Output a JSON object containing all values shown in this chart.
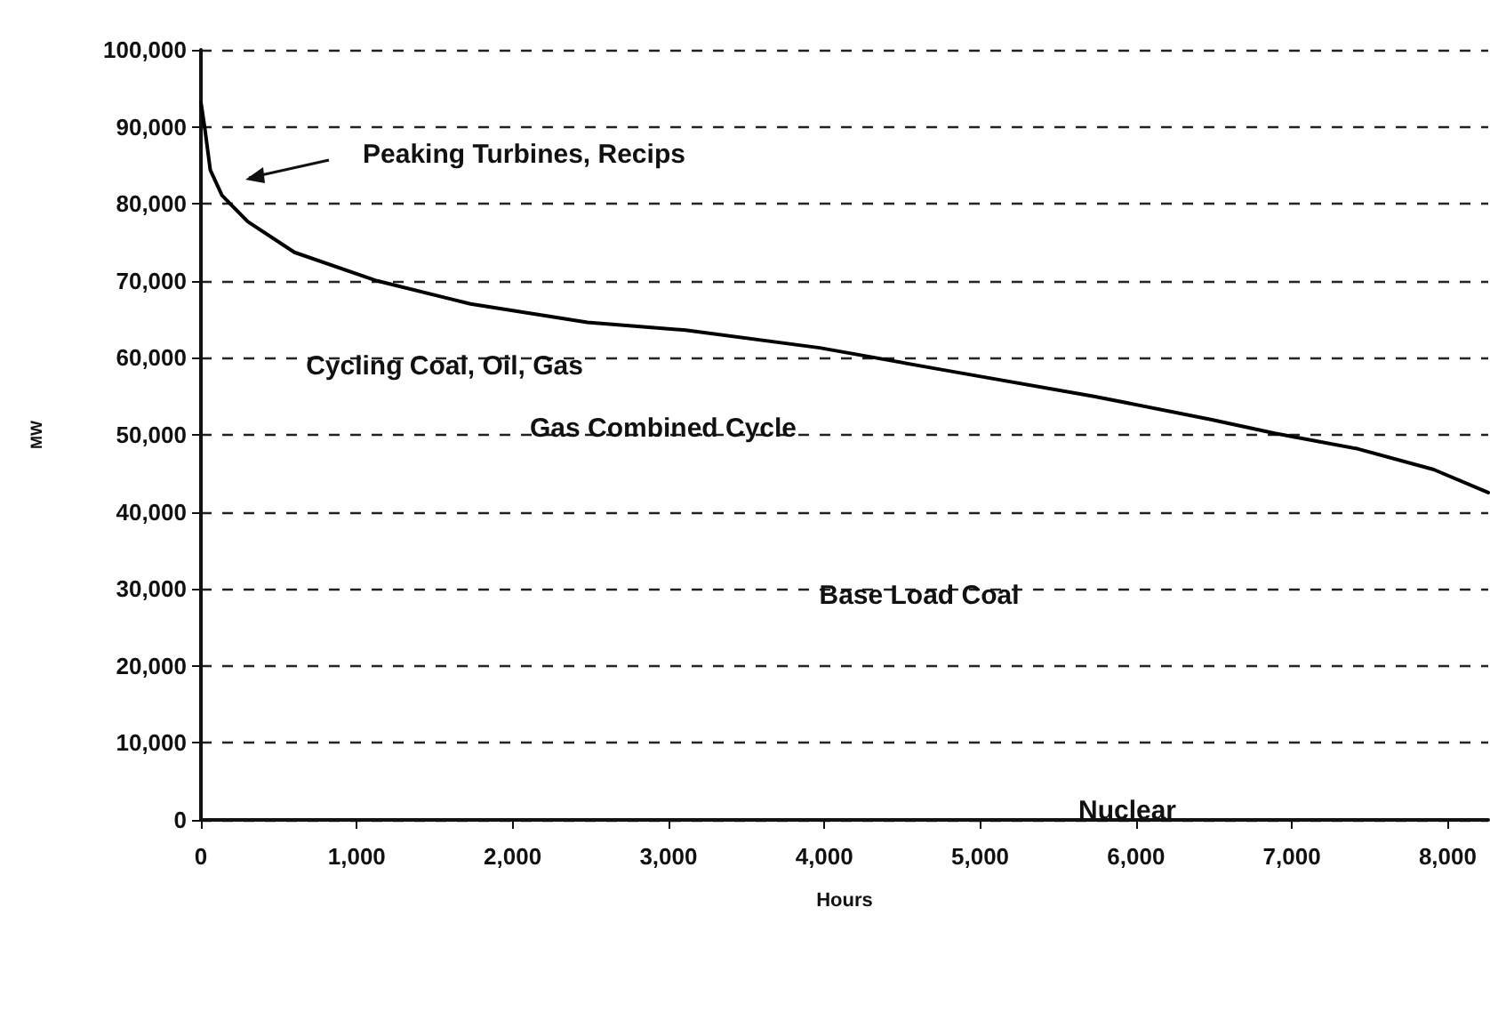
{
  "chart_data": {
    "type": "line",
    "xlabel": "Hours",
    "ylabel": "MW",
    "x": [
      0,
      25,
      60,
      135,
      300,
      600,
      1130,
      1730,
      2480,
      3110,
      3970,
      4800,
      5730,
      6480,
      6890,
      7420,
      7910,
      8260
    ],
    "values": [
      93200,
      89800,
      84400,
      81100,
      77700,
      73700,
      70000,
      67000,
      64600,
      63600,
      61300,
      58300,
      55000,
      52000,
      50200,
      48200,
      45500,
      42500
    ],
    "color": "#000000",
    "xlim": [
      0,
      8260
    ],
    "xticks": [
      0,
      {
        "value": 1000,
        "label": "1,000"
      },
      {
        "value": 2000,
        "label": "2,000"
      },
      {
        "value": 3000,
        "label": "3,000"
      },
      {
        "value": 4000,
        "label": "4,000"
      },
      {
        "value": 5000,
        "label": "5,000"
      },
      {
        "value": 6000,
        "label": "6,000"
      },
      {
        "value": 7000,
        "label": "7,000"
      },
      {
        "value": 8000,
        "label": "8,000"
      }
    ],
    "ylim": [
      0,
      100000
    ],
    "yticks": [
      0,
      {
        "value": 10000,
        "label": "10,000"
      },
      {
        "value": 20000,
        "label": "20,000"
      },
      {
        "value": 30000,
        "label": "30,000"
      },
      {
        "value": 40000,
        "label": "40,000"
      },
      {
        "value": 50000,
        "label": "50,000"
      },
      {
        "value": 60000,
        "label": "60,000"
      },
      {
        "value": 70000,
        "label": "70,000"
      },
      {
        "value": 80000,
        "label": "80,000"
      },
      {
        "value": 90000,
        "label": "90,000"
      },
      {
        "value": 100000,
        "label": "100,000"
      }
    ],
    "grid": "y",
    "marker": "none",
    "line_style": "solid",
    "annotations": [
      "Peaking Turbines, Recips",
      "Cycling Coal, Oil, Gas",
      "Gas Combined Cycle",
      "Base Load Coal",
      "Nuclear"
    ]
  }
}
